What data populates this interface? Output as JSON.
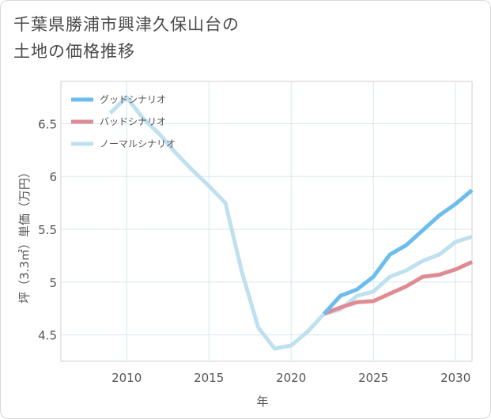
{
  "page": {
    "title_line1": "千葉県勝浦市興津久保山台の",
    "title_line2": "土地の価格推移"
  },
  "chart_data": {
    "type": "line",
    "xlabel": "年",
    "ylabel": "坪（3.3㎡）単価（万円）",
    "xlim": [
      2006,
      2031
    ],
    "ylim": [
      4.25,
      6.9
    ],
    "x_ticks": [
      2010,
      2015,
      2020,
      2025,
      2030
    ],
    "x_tick_labels": [
      "2010",
      "2015",
      "2020",
      "2025",
      "2030"
    ],
    "y_ticks": [
      4.5,
      5,
      5.5,
      6,
      6.5
    ],
    "y_tick_labels": [
      "4.5",
      "5",
      "5.5",
      "6",
      "6.5"
    ],
    "grid": true,
    "legend_position": "top-left",
    "series": [
      {
        "name": "グッドシナリオ",
        "color": "#6cbdee",
        "x": [
          2022,
          2023,
          2024,
          2025,
          2026,
          2027,
          2028,
          2029,
          2030,
          2031
        ],
        "y": [
          4.7,
          4.87,
          4.93,
          5.05,
          5.26,
          5.35,
          5.49,
          5.63,
          5.74,
          5.87
        ]
      },
      {
        "name": "バッドシナリオ",
        "color": "#e08a93",
        "x": [
          2022,
          2023,
          2024,
          2025,
          2026,
          2027,
          2028,
          2029,
          2030,
          2031
        ],
        "y": [
          4.7,
          4.76,
          4.81,
          4.82,
          4.89,
          4.96,
          5.05,
          5.07,
          5.12,
          5.19
        ]
      },
      {
        "name": "ノーマルシナリオ",
        "color": "#bfe0ee",
        "x": [
          2009,
          2010,
          2011,
          2012,
          2013,
          2014,
          2015,
          2016,
          2017,
          2018,
          2019,
          2020,
          2021,
          2022,
          2023,
          2024,
          2025,
          2026,
          2027,
          2028,
          2029,
          2030,
          2031
        ],
        "y": [
          6.6,
          6.75,
          6.55,
          6.4,
          6.22,
          6.06,
          5.91,
          5.75,
          5.1,
          4.57,
          4.37,
          4.4,
          4.53,
          4.7,
          4.74,
          4.87,
          4.91,
          5.05,
          5.11,
          5.2,
          5.26,
          5.38,
          5.43
        ]
      }
    ]
  }
}
